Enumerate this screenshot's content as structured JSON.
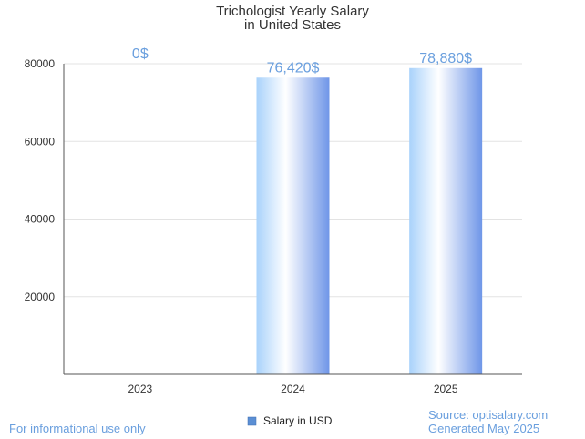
{
  "colors": {
    "accent": "#6a9fde",
    "bar_light": "#a9d2fb",
    "bar_white": "#ffffff",
    "bar_dark": "#6f96e8",
    "grid": "#e3e3e3",
    "axis": "#555555",
    "legend_swatch": "#5b8fd4"
  },
  "chart_data": {
    "type": "bar",
    "title": "Trichologist Yearly Salary",
    "subtitle": "in United States",
    "categories": [
      "2023",
      "2024",
      "2025"
    ],
    "series": [
      {
        "name": "Salary in USD",
        "values": [
          0,
          76420,
          78880
        ],
        "labels": [
          "0$",
          "76,420$",
          "78,880$"
        ]
      }
    ],
    "xlabel": "",
    "ylabel": "",
    "ylim": [
      0,
      80000
    ],
    "yticks": [
      20000,
      40000,
      60000,
      80000
    ],
    "ytick_labels": [
      "20000",
      "40000",
      "60000",
      "80000"
    ],
    "grid": true,
    "legend_position": "bottom-center"
  },
  "footer": {
    "left_note": "For informational use only",
    "source": "Source: optisalary.com",
    "generated": "Generated May 2025"
  }
}
